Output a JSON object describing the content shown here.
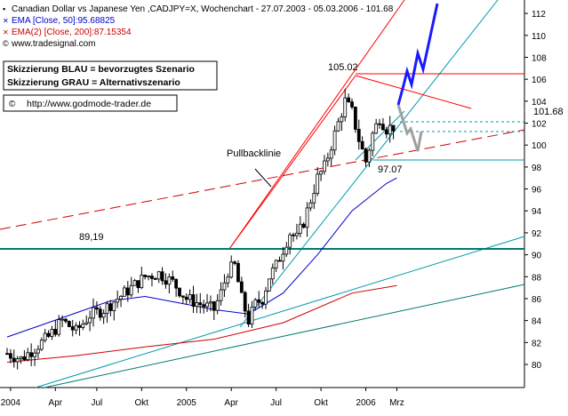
{
  "header": {
    "title": "Canadian Dollar vs Japanese Yen ,CADJPY=X, Wochenchart - 27.07.2003 - 05.03.2006 - 101.68",
    "ema50_label": "EMA [Close, 50]:95.68825",
    "ema200_label": "EMA(2) [Close, 200]:87.15354",
    "website": "www.tradesignal.com"
  },
  "legend_box": {
    "line1": "Skizzierung BLAU = bevorzugtes Szenario",
    "line2": "Skizzierung GRAU = Alternativszenario"
  },
  "url_box": {
    "text": "http://www.godmode-trader.de"
  },
  "annotations": {
    "high": "105.02",
    "low": "97.07",
    "level_89": "89,19",
    "pullback": "Pullbacklinie",
    "last_price": "101.68"
  },
  "colors": {
    "price": "#000000",
    "ema50": "#0000cc",
    "ema200": "#cc0000",
    "channel": "#ff0000",
    "trendline": "#0099aa",
    "support": "#007a6e",
    "scenario_blue": "#1a1aff",
    "scenario_gray": "#a0a0a0"
  },
  "chart_data": {
    "type": "candlestick",
    "title": "Canadian Dollar vs Japanese Yen ,CADJPY=X, Wochenchart - 27.07.2003 - 05.03.2006 - 101.68",
    "ylim": [
      78,
      113
    ],
    "y_ticks": [
      80,
      82,
      84,
      86,
      88,
      90,
      92,
      94,
      96,
      98,
      100,
      102,
      104,
      106,
      108,
      110,
      112
    ],
    "x_tick_labels": [
      "2004",
      "Apr",
      "Jul",
      "Okt",
      "2005",
      "Apr",
      "Jul",
      "Okt",
      "2006",
      "Mrz"
    ],
    "x_tick_weeks": [
      1,
      14,
      26,
      39,
      52,
      65,
      78,
      91,
      104,
      113
    ],
    "last_price": 101.68,
    "price_path": [
      [
        0,
        81
      ],
      [
        4,
        80.5
      ],
      [
        8,
        81.5
      ],
      [
        12,
        82.5
      ],
      [
        16,
        84
      ],
      [
        20,
        83
      ],
      [
        24,
        84.5
      ],
      [
        28,
        85
      ],
      [
        32,
        86
      ],
      [
        36,
        87
      ],
      [
        40,
        88
      ],
      [
        44,
        88.3
      ],
      [
        48,
        87.5
      ],
      [
        52,
        86
      ],
      [
        56,
        85.5
      ],
      [
        60,
        85
      ],
      [
        62,
        86.5
      ],
      [
        64,
        88.5
      ],
      [
        66,
        89
      ],
      [
        68,
        86
      ],
      [
        70,
        84
      ],
      [
        72,
        85.5
      ],
      [
        74,
        86
      ],
      [
        76,
        88
      ],
      [
        78,
        89
      ],
      [
        80,
        90.5
      ],
      [
        82,
        92
      ],
      [
        84,
        91.5
      ],
      [
        86,
        93
      ],
      [
        88,
        95
      ],
      [
        90,
        97
      ],
      [
        92,
        98
      ],
      [
        94,
        100
      ],
      [
        96,
        102
      ],
      [
        98,
        104
      ],
      [
        100,
        103
      ],
      [
        102,
        100.5
      ],
      [
        104,
        98.5
      ],
      [
        106,
        101
      ],
      [
        108,
        102.5
      ],
      [
        110,
        101.5
      ],
      [
        112,
        101.68
      ]
    ],
    "ema50_path": [
      [
        0,
        82.5
      ],
      [
        10,
        83.6
      ],
      [
        20,
        84.7
      ],
      [
        30,
        85.8
      ],
      [
        40,
        86.2
      ],
      [
        50,
        85.6
      ],
      [
        60,
        85
      ],
      [
        70,
        84.6
      ],
      [
        80,
        86.5
      ],
      [
        90,
        90
      ],
      [
        100,
        94
      ],
      [
        110,
        96.5
      ],
      [
        113,
        97
      ]
    ],
    "ema200_path": [
      [
        0,
        80.2
      ],
      [
        20,
        80.8
      ],
      [
        40,
        81.6
      ],
      [
        60,
        82.3
      ],
      [
        80,
        83.8
      ],
      [
        100,
        86.5
      ],
      [
        113,
        87.2
      ]
    ],
    "horizontal_levels": [
      {
        "value": 105.02,
        "label": "105.02"
      },
      {
        "value": 89.19,
        "label": "89,19"
      },
      {
        "value": 97.07,
        "label": "97.07"
      },
      {
        "value": 100.5,
        "label": ""
      },
      {
        "value": 99.5,
        "label": ""
      }
    ]
  }
}
